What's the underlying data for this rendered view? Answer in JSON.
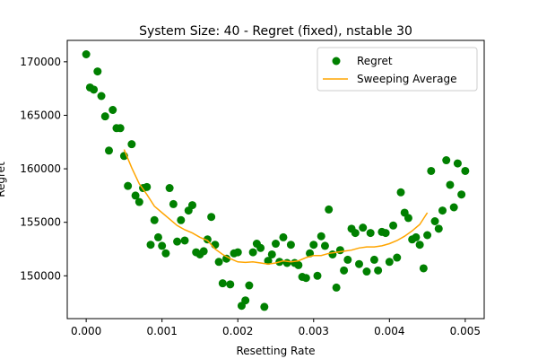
{
  "chart_data": {
    "type": "scatter",
    "title": "System Size: 40 - Regret (fixed), nstable 30",
    "xlabel": "Resetting Rate",
    "ylabel": "Regret",
    "xlim": [
      -0.00025,
      0.00525
    ],
    "ylim": [
      146000,
      172000
    ],
    "x_ticks": [
      0.0,
      0.001,
      0.002,
      0.003,
      0.004,
      0.005
    ],
    "x_tick_labels": [
      "0.000",
      "0.001",
      "0.002",
      "0.003",
      "0.004",
      "0.005"
    ],
    "y_ticks": [
      150000,
      155000,
      160000,
      165000,
      170000
    ],
    "y_tick_labels": [
      "150000",
      "155000",
      "160000",
      "165000",
      "170000"
    ],
    "grid": false,
    "legend_position": "top-right",
    "series": [
      {
        "name": "Regret",
        "kind": "scatter",
        "color": "#008000",
        "points": [
          [
            0.0,
            170700
          ],
          [
            5e-05,
            167600
          ],
          [
            0.0001,
            167400
          ],
          [
            0.00015,
            169100
          ],
          [
            0.0002,
            166800
          ],
          [
            0.00025,
            164900
          ],
          [
            0.0003,
            161700
          ],
          [
            0.00035,
            165500
          ],
          [
            0.0004,
            163800
          ],
          [
            0.00045,
            163800
          ],
          [
            0.0005,
            161200
          ],
          [
            0.00055,
            158400
          ],
          [
            0.0006,
            162300
          ],
          [
            0.00065,
            157500
          ],
          [
            0.0007,
            156900
          ],
          [
            0.00075,
            158200
          ],
          [
            0.0008,
            158300
          ],
          [
            0.00085,
            152900
          ],
          [
            0.0009,
            155200
          ],
          [
            0.00095,
            153600
          ],
          [
            0.001,
            152800
          ],
          [
            0.00105,
            152100
          ],
          [
            0.0011,
            158200
          ],
          [
            0.00115,
            156700
          ],
          [
            0.0012,
            153200
          ],
          [
            0.00125,
            155200
          ],
          [
            0.0013,
            153300
          ],
          [
            0.00135,
            156100
          ],
          [
            0.0014,
            156600
          ],
          [
            0.00145,
            152200
          ],
          [
            0.0015,
            152000
          ],
          [
            0.00155,
            152300
          ],
          [
            0.0016,
            153400
          ],
          [
            0.00165,
            155500
          ],
          [
            0.0017,
            152900
          ],
          [
            0.00175,
            151300
          ],
          [
            0.0018,
            149300
          ],
          [
            0.00185,
            151600
          ],
          [
            0.0019,
            149200
          ],
          [
            0.00195,
            152100
          ],
          [
            0.002,
            152200
          ],
          [
            0.00205,
            147200
          ],
          [
            0.0021,
            147700
          ],
          [
            0.00215,
            149100
          ],
          [
            0.0022,
            152200
          ],
          [
            0.00225,
            153000
          ],
          [
            0.0023,
            152600
          ],
          [
            0.00235,
            147100
          ],
          [
            0.0024,
            151400
          ],
          [
            0.00245,
            152000
          ],
          [
            0.0025,
            153000
          ],
          [
            0.00255,
            151300
          ],
          [
            0.0026,
            153600
          ],
          [
            0.00265,
            151200
          ],
          [
            0.0027,
            152900
          ],
          [
            0.00275,
            151200
          ],
          [
            0.0028,
            151000
          ],
          [
            0.00285,
            149900
          ],
          [
            0.0029,
            149800
          ],
          [
            0.00295,
            152100
          ],
          [
            0.003,
            152900
          ],
          [
            0.00305,
            150000
          ],
          [
            0.0031,
            153700
          ],
          [
            0.00315,
            152800
          ],
          [
            0.0032,
            156200
          ],
          [
            0.00325,
            152000
          ],
          [
            0.0033,
            148900
          ],
          [
            0.00335,
            152400
          ],
          [
            0.0034,
            150500
          ],
          [
            0.00345,
            151500
          ],
          [
            0.0035,
            154400
          ],
          [
            0.00355,
            154000
          ],
          [
            0.0036,
            151100
          ],
          [
            0.00365,
            154500
          ],
          [
            0.0037,
            150400
          ],
          [
            0.00375,
            154000
          ],
          [
            0.0038,
            151500
          ],
          [
            0.00385,
            150500
          ],
          [
            0.0039,
            154100
          ],
          [
            0.00395,
            154000
          ],
          [
            0.004,
            151300
          ],
          [
            0.00405,
            154700
          ],
          [
            0.0041,
            151700
          ],
          [
            0.00415,
            157800
          ],
          [
            0.0042,
            155900
          ],
          [
            0.00425,
            155400
          ],
          [
            0.0043,
            153400
          ],
          [
            0.00435,
            153600
          ],
          [
            0.0044,
            152900
          ],
          [
            0.00445,
            150700
          ],
          [
            0.0045,
            153800
          ],
          [
            0.00455,
            159800
          ],
          [
            0.0046,
            155100
          ],
          [
            0.00465,
            154400
          ],
          [
            0.0047,
            156100
          ],
          [
            0.00475,
            160800
          ],
          [
            0.0048,
            158500
          ],
          [
            0.00485,
            156400
          ],
          [
            0.0049,
            160500
          ],
          [
            0.00495,
            157600
          ],
          [
            0.005,
            159800
          ]
        ]
      },
      {
        "name": "Sweeping Average",
        "kind": "line",
        "color": "#FFA500",
        "points": [
          [
            0.0005,
            161800
          ],
          [
            0.0006,
            160100
          ],
          [
            0.0007,
            158600
          ],
          [
            0.0008,
            157600
          ],
          [
            0.0009,
            156500
          ],
          [
            0.001,
            155900
          ],
          [
            0.0011,
            155300
          ],
          [
            0.0012,
            154700
          ],
          [
            0.0013,
            154300
          ],
          [
            0.0014,
            154000
          ],
          [
            0.0015,
            153600
          ],
          [
            0.0016,
            153300
          ],
          [
            0.0017,
            152500
          ],
          [
            0.0018,
            152000
          ],
          [
            0.0019,
            151600
          ],
          [
            0.002,
            151300
          ],
          [
            0.0021,
            151250
          ],
          [
            0.0022,
            151300
          ],
          [
            0.0023,
            151200
          ],
          [
            0.0024,
            151100
          ],
          [
            0.0025,
            151200
          ],
          [
            0.0026,
            151400
          ],
          [
            0.0027,
            151300
          ],
          [
            0.0028,
            151400
          ],
          [
            0.0029,
            151700
          ],
          [
            0.003,
            151900
          ],
          [
            0.0031,
            151900
          ],
          [
            0.0032,
            152100
          ],
          [
            0.0033,
            152200
          ],
          [
            0.0034,
            152300
          ],
          [
            0.0035,
            152400
          ],
          [
            0.0036,
            152600
          ],
          [
            0.0037,
            152700
          ],
          [
            0.0038,
            152700
          ],
          [
            0.0039,
            152800
          ],
          [
            0.004,
            153000
          ],
          [
            0.0041,
            153300
          ],
          [
            0.0042,
            153700
          ],
          [
            0.0043,
            154200
          ],
          [
            0.0044,
            154800
          ],
          [
            0.0045,
            155900
          ]
        ]
      }
    ]
  }
}
